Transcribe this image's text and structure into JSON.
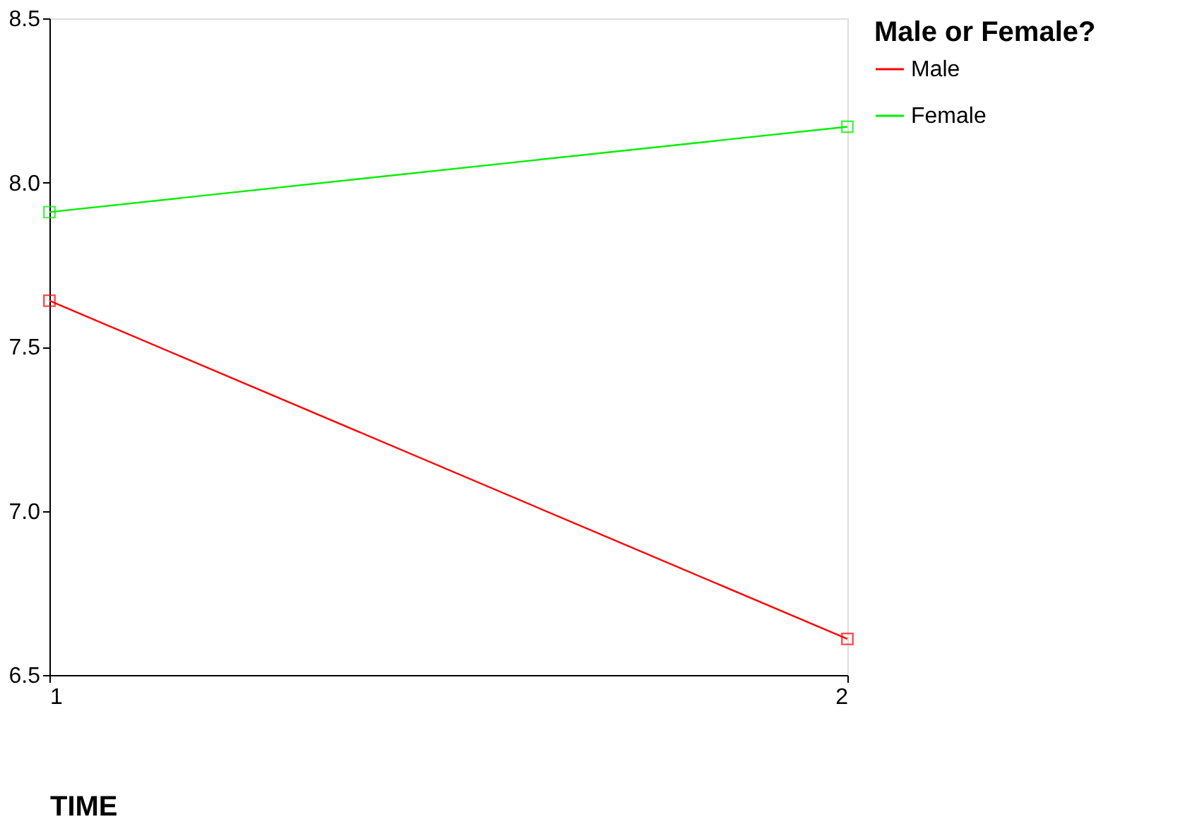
{
  "chart_data": {
    "type": "line",
    "xlabel": "TIME",
    "legend_title": "Male or Female?",
    "x": [
      1,
      2
    ],
    "xlim": [
      1,
      2
    ],
    "xticks": [
      1,
      2
    ],
    "ylim": [
      6.5,
      8.5
    ],
    "yticks": [
      {
        "value": 6.5,
        "label": "6.5"
      },
      {
        "value": 7,
        "label": "7.0"
      },
      {
        "value": 7.5,
        "label": "7.5"
      },
      {
        "value": 8,
        "label": "8.0"
      },
      {
        "value": 8.5,
        "label": "8.5"
      }
    ],
    "series": [
      {
        "name": "Male",
        "color": "#ff0000",
        "values": [
          7.64,
          6.61
        ]
      },
      {
        "name": "Female",
        "color": "#00ee00",
        "values": [
          7.91,
          8.17
        ]
      }
    ],
    "marker": "square",
    "line_style": "solid",
    "grid": false,
    "legend": "right"
  }
}
